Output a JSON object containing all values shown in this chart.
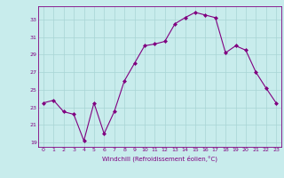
{
  "x": [
    0,
    1,
    2,
    3,
    4,
    5,
    6,
    7,
    8,
    9,
    10,
    11,
    12,
    13,
    14,
    15,
    16,
    17,
    18,
    19,
    20,
    21,
    22,
    23
  ],
  "y": [
    23.5,
    23.8,
    22.5,
    22.2,
    19.2,
    23.5,
    20.0,
    22.5,
    26.0,
    28.0,
    30.0,
    30.2,
    30.5,
    32.5,
    33.2,
    33.8,
    33.5,
    33.2,
    29.2,
    30.0,
    29.5,
    27.0,
    25.2,
    23.5
  ],
  "line_color": "#800080",
  "marker": "D",
  "marker_size": 2.0,
  "bg_color": "#c8ecec",
  "grid_color": "#a8d4d4",
  "xlabel": "Windchill (Refroidissement éolien,°C)",
  "xlabel_color": "#800080",
  "tick_color": "#800080",
  "ylim": [
    18.5,
    34.5
  ],
  "xlim": [
    -0.5,
    23.5
  ],
  "yticks": [
    19,
    21,
    23,
    25,
    27,
    29,
    31,
    33
  ],
  "xticks": [
    0,
    1,
    2,
    3,
    4,
    5,
    6,
    7,
    8,
    9,
    10,
    11,
    12,
    13,
    14,
    15,
    16,
    17,
    18,
    19,
    20,
    21,
    22,
    23
  ]
}
